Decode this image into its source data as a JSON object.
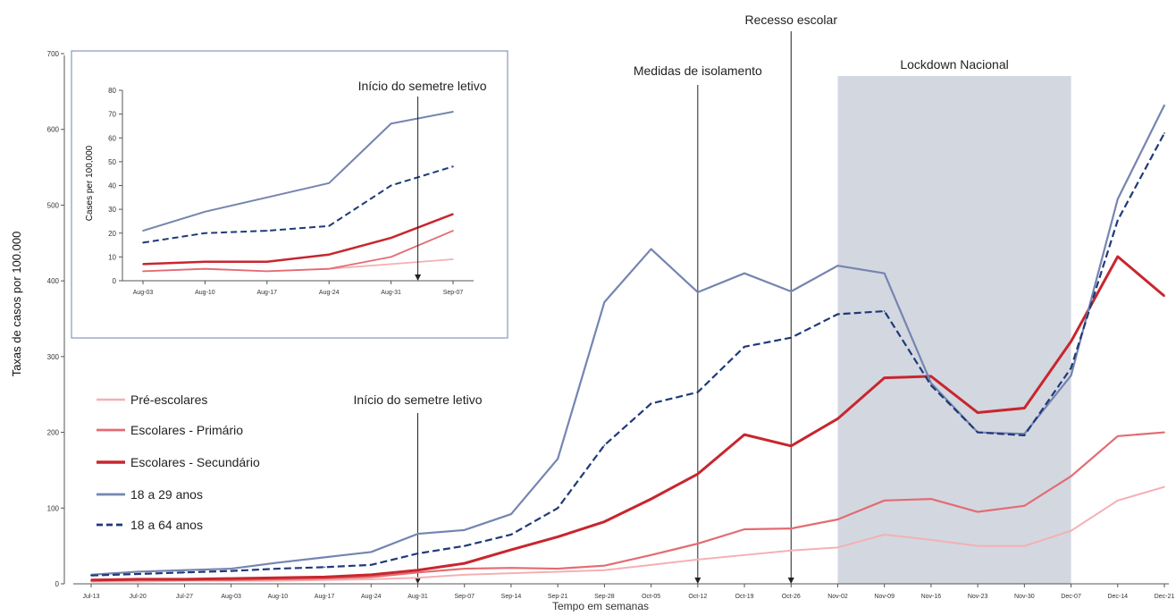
{
  "chart_data": [
    {
      "type": "line",
      "role": "main",
      "xlabel": "Tempo em semanas",
      "ylabel": "Taxas de casos por 100.000",
      "ylim": [
        0,
        700
      ],
      "yticks": [
        0,
        100,
        200,
        300,
        400,
        500,
        600,
        700
      ],
      "categories": [
        "Jul-13",
        "Jul-20",
        "Jul-27",
        "Aug-03",
        "Aug-10",
        "Aug-17",
        "Aug-24",
        "Aug-31",
        "Sep-07",
        "Sep-14",
        "Sep-21",
        "Sep-28",
        "Oct-05",
        "Oct-12",
        "Oct-19",
        "Oct-26",
        "Nov-02",
        "Nov-09",
        "Nov-16",
        "Nov-23",
        "Nov-30",
        "Dec-07",
        "Dec-14",
        "Dec-21"
      ],
      "legend_position": "left",
      "series": [
        {
          "name": "Pré-escolares",
          "color": "#f4b0b4",
          "dash": false,
          "width": 2,
          "values": [
            3,
            3,
            4,
            4,
            4,
            5,
            6,
            8,
            12,
            14,
            16,
            18,
            25,
            32,
            38,
            44,
            48,
            65,
            58,
            50,
            50,
            70,
            110,
            128
          ]
        },
        {
          "name": "Escolares - Primário",
          "color": "#e26c72",
          "dash": false,
          "width": 2.2,
          "values": [
            4,
            5,
            5,
            5,
            6,
            7,
            9,
            15,
            20,
            21,
            20,
            24,
            38,
            53,
            72,
            73,
            85,
            110,
            112,
            95,
            103,
            142,
            195,
            200
          ]
        },
        {
          "name": "Escolares - Secundário",
          "color": "#c8262e",
          "dash": false,
          "width": 3,
          "values": [
            5,
            6,
            6,
            7,
            8,
            9,
            12,
            18,
            27,
            45,
            62,
            82,
            112,
            145,
            197,
            182,
            218,
            272,
            274,
            226,
            232,
            320,
            432,
            380
          ]
        },
        {
          "name": "18 a 29 anos",
          "color": "#7585b0",
          "dash": false,
          "width": 2.2,
          "values": [
            12,
            16,
            18,
            20,
            28,
            35,
            42,
            66,
            71,
            92,
            165,
            372,
            442,
            385,
            410,
            386,
            420,
            410,
            265,
            200,
            198,
            275,
            508,
            632
          ]
        },
        {
          "name": "18 a 64 anos",
          "color": "#1f3a78",
          "dash": true,
          "width": 2.2,
          "values": [
            11,
            13,
            15,
            17,
            20,
            22,
            25,
            40,
            50,
            65,
            100,
            183,
            238,
            253,
            313,
            325,
            356,
            360,
            262,
            200,
            196,
            285,
            480,
            595
          ]
        }
      ],
      "annotations": [
        {
          "text": "Início do semetre letivo",
          "category": "Aug-31"
        },
        {
          "text": "Medidas de isolamento",
          "category": "Oct-12"
        },
        {
          "text": "Recesso escolar",
          "category": "Oct-26"
        }
      ],
      "shaded_region": {
        "label": "Lockdown Nacional",
        "from": "Nov-02",
        "to": "Dec-07",
        "color": "#d3d7e0"
      }
    },
    {
      "type": "line",
      "role": "inset",
      "ylabel": "Cases per 100,000",
      "ylim": [
        0,
        80
      ],
      "yticks": [
        0,
        10,
        20,
        30,
        40,
        50,
        60,
        70,
        80
      ],
      "categories": [
        "Aug-03",
        "Aug-10",
        "Aug-17",
        "Aug-24",
        "Aug-31",
        "Sep-07"
      ],
      "series": [
        {
          "name": "Pré-escolares",
          "color": "#f4b0b4",
          "dash": false,
          "width": 1.8,
          "values": [
            4,
            5,
            4,
            5,
            7,
            9
          ]
        },
        {
          "name": "Escolares - Primário",
          "color": "#e26c72",
          "dash": false,
          "width": 1.8,
          "values": [
            4,
            5,
            4,
            5,
            10,
            21
          ]
        },
        {
          "name": "Escolares - Secundário",
          "color": "#c8262e",
          "dash": false,
          "width": 2.5,
          "values": [
            7,
            8,
            8,
            11,
            18,
            28
          ]
        },
        {
          "name": "18 a 29 anos",
          "color": "#7585b0",
          "dash": false,
          "width": 2,
          "values": [
            21,
            29,
            35,
            41,
            66,
            71
          ]
        },
        {
          "name": "18 a 64 anos",
          "color": "#1f3a78",
          "dash": true,
          "width": 2,
          "values": [
            16,
            20,
            21,
            23,
            40,
            48
          ]
        }
      ],
      "annotations": [
        {
          "text": "Início do semetre letivo",
          "category": "Aug-31"
        }
      ]
    }
  ]
}
